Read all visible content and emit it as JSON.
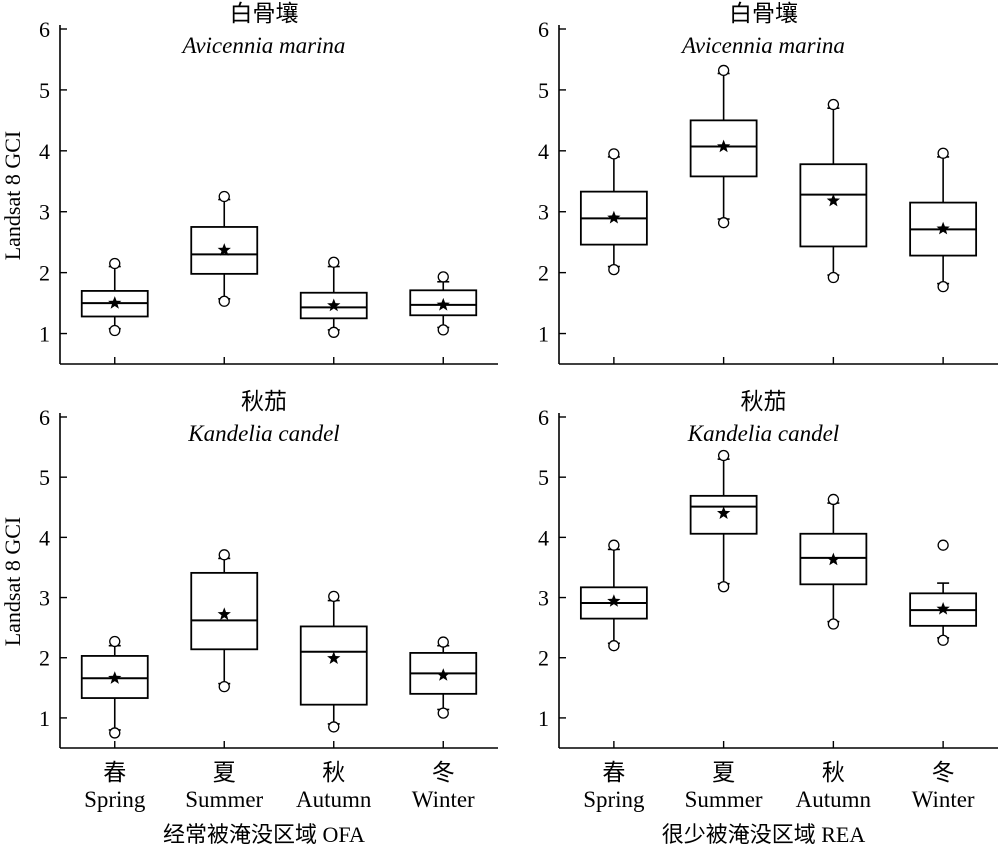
{
  "chart_data": {
    "type": "box",
    "ylabel": "Landsat 8 GCI",
    "ylim": [
      0.5,
      6
    ],
    "yticks": [
      1,
      2,
      3,
      4,
      5,
      6
    ],
    "categories": [
      {
        "cn": "春",
        "en": "Spring"
      },
      {
        "cn": "夏",
        "en": "Summer"
      },
      {
        "cn": "秋",
        "en": "Autumn"
      },
      {
        "cn": "冬",
        "en": "Winter"
      }
    ],
    "groups": [
      "经常被淹没区域 OFA",
      "很少被淹没区域 REA"
    ],
    "legend_markers": {
      "mean": "star",
      "outlier": "circle"
    },
    "panels": [
      {
        "title_cn": "白骨壤",
        "title_sp": "Avicennia marina",
        "group": "经常被淹没区域 OFA",
        "boxes": [
          {
            "q1": 1.28,
            "median": 1.5,
            "q3": 1.7,
            "wlo": 1.08,
            "whi": 2.1,
            "mean": 1.5,
            "outliers": [
              1.05,
              2.15
            ]
          },
          {
            "q1": 1.98,
            "median": 2.3,
            "q3": 2.75,
            "wlo": 1.57,
            "whi": 3.2,
            "mean": 2.37,
            "outliers": [
              1.53,
              3.25
            ]
          },
          {
            "q1": 1.25,
            "median": 1.43,
            "q3": 1.67,
            "wlo": 1.06,
            "whi": 2.1,
            "mean": 1.46,
            "outliers": [
              1.02,
              2.17
            ]
          },
          {
            "q1": 1.3,
            "median": 1.47,
            "q3": 1.71,
            "wlo": 1.1,
            "whi": 1.85,
            "mean": 1.47,
            "outliers": [
              1.06,
              1.93
            ]
          }
        ]
      },
      {
        "title_cn": "白骨壤",
        "title_sp": "Avicennia marina",
        "group": "很少被淹没区域 REA",
        "boxes": [
          {
            "q1": 2.46,
            "median": 2.89,
            "q3": 3.33,
            "wlo": 2.1,
            "whi": 3.9,
            "mean": 2.9,
            "outliers": [
              2.05,
              3.95
            ]
          },
          {
            "q1": 3.58,
            "median": 4.07,
            "q3": 4.5,
            "wlo": 2.88,
            "whi": 5.27,
            "mean": 4.07,
            "outliers": [
              2.82,
              5.32
            ]
          },
          {
            "q1": 2.43,
            "median": 3.28,
            "q3": 3.78,
            "wlo": 1.96,
            "whi": 4.7,
            "mean": 3.18,
            "outliers": [
              1.92,
              4.76
            ]
          },
          {
            "q1": 2.28,
            "median": 2.71,
            "q3": 3.15,
            "wlo": 1.82,
            "whi": 3.9,
            "mean": 2.72,
            "outliers": [
              1.77,
              3.96
            ]
          }
        ]
      },
      {
        "title_cn": "秋茄",
        "title_sp": "Kandelia candel",
        "group": "经常被淹没区域 OFA",
        "boxes": [
          {
            "q1": 1.33,
            "median": 1.66,
            "q3": 2.03,
            "wlo": 0.8,
            "whi": 2.2,
            "mean": 1.66,
            "outliers": [
              0.75,
              2.27
            ]
          },
          {
            "q1": 2.14,
            "median": 2.62,
            "q3": 3.41,
            "wlo": 1.57,
            "whi": 3.65,
            "mean": 2.72,
            "outliers": [
              1.52,
              3.71
            ]
          },
          {
            "q1": 1.22,
            "median": 2.1,
            "q3": 2.52,
            "wlo": 0.9,
            "whi": 2.95,
            "mean": 1.99,
            "outliers": [
              0.85,
              3.02
            ]
          },
          {
            "q1": 1.4,
            "median": 1.74,
            "q3": 2.08,
            "wlo": 1.14,
            "whi": 2.2,
            "mean": 1.71,
            "outliers": [
              1.08,
              2.26
            ]
          }
        ]
      },
      {
        "title_cn": "秋茄",
        "title_sp": "Kandelia candel",
        "group": "很少被淹没区域 REA",
        "boxes": [
          {
            "q1": 2.65,
            "median": 2.91,
            "q3": 3.17,
            "wlo": 2.24,
            "whi": 3.8,
            "mean": 2.94,
            "outliers": [
              2.2,
              3.87
            ]
          },
          {
            "q1": 4.06,
            "median": 4.51,
            "q3": 4.69,
            "wlo": 3.23,
            "whi": 5.3,
            "mean": 4.4,
            "outliers": [
              3.18,
              5.36
            ]
          },
          {
            "q1": 3.22,
            "median": 3.66,
            "q3": 4.06,
            "wlo": 2.6,
            "whi": 4.57,
            "mean": 3.63,
            "outliers": [
              2.56,
              4.63
            ]
          },
          {
            "q1": 2.53,
            "median": 2.79,
            "q3": 3.07,
            "wlo": 2.33,
            "whi": 3.24,
            "mean": 2.81,
            "outliers": [
              2.29,
              3.87
            ]
          }
        ]
      }
    ]
  }
}
